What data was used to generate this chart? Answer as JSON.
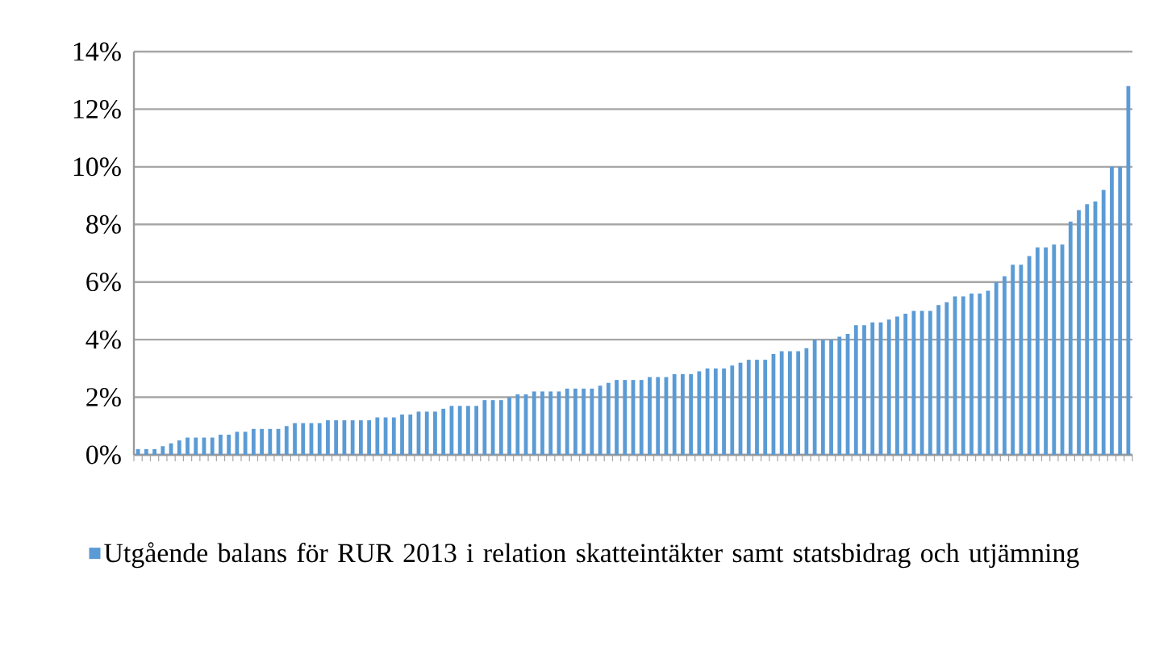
{
  "chart_data": {
    "type": "bar",
    "categories": [
      null,
      null,
      null,
      null,
      null,
      null,
      null,
      null,
      null,
      null,
      null,
      null,
      null,
      null,
      null,
      null,
      null,
      null,
      null,
      null,
      null,
      null,
      null,
      null,
      null,
      null,
      null,
      null,
      null,
      null,
      null,
      null,
      null,
      null,
      null,
      null,
      null,
      null,
      null,
      null,
      null,
      null,
      null,
      null,
      null,
      null,
      null,
      null,
      null,
      null,
      null,
      null,
      null,
      null,
      null,
      null,
      null,
      null,
      null,
      null,
      null,
      null,
      null,
      null,
      null,
      null,
      null,
      null,
      null,
      null,
      null,
      null,
      null,
      null,
      null,
      null,
      null,
      null,
      null,
      null,
      null,
      null,
      null,
      null,
      null,
      null,
      null,
      null,
      null,
      null,
      null,
      null,
      null,
      null,
      null,
      null,
      null,
      null,
      null,
      null,
      null,
      null,
      null,
      null,
      null,
      null,
      null,
      null,
      null,
      null,
      null,
      null,
      null,
      null,
      null,
      null,
      null,
      null,
      null,
      null,
      null
    ],
    "series": [
      {
        "name": "Utgående balans för RUR 2013 i relation skatteintäkter samt statsbidrag och utjämning",
        "color": "#5b9bd5",
        "values": [
          0.2,
          0.2,
          0.2,
          0.3,
          0.4,
          0.5,
          0.6,
          0.6,
          0.6,
          0.6,
          0.7,
          0.7,
          0.8,
          0.8,
          0.9,
          0.9,
          0.9,
          0.9,
          1.0,
          1.1,
          1.1,
          1.1,
          1.1,
          1.2,
          1.2,
          1.2,
          1.2,
          1.2,
          1.2,
          1.3,
          1.3,
          1.3,
          1.4,
          1.4,
          1.5,
          1.5,
          1.5,
          1.6,
          1.7,
          1.7,
          1.7,
          1.7,
          1.9,
          1.9,
          1.9,
          2.0,
          2.1,
          2.1,
          2.2,
          2.2,
          2.2,
          2.2,
          2.3,
          2.3,
          2.3,
          2.3,
          2.4,
          2.5,
          2.6,
          2.6,
          2.6,
          2.6,
          2.7,
          2.7,
          2.7,
          2.8,
          2.8,
          2.8,
          2.9,
          3.0,
          3.0,
          3.0,
          3.1,
          3.2,
          3.3,
          3.3,
          3.3,
          3.5,
          3.6,
          3.6,
          3.6,
          3.7,
          4.0,
          4.0,
          4.0,
          4.1,
          4.2,
          4.5,
          4.5,
          4.6,
          4.6,
          4.7,
          4.8,
          4.9,
          5.0,
          5.0,
          5.0,
          5.2,
          5.3,
          5.5,
          5.5,
          5.6,
          5.6,
          5.7,
          6.0,
          6.2,
          6.6,
          6.6,
          6.9,
          7.2,
          7.2,
          7.3,
          7.3,
          8.1,
          8.5,
          8.7,
          8.8,
          9.2,
          10.0,
          10.0,
          12.8
        ]
      }
    ],
    "ylim": [
      0,
      14
    ],
    "yticks": [
      {
        "value": 0,
        "label": "0%"
      },
      {
        "value": 2,
        "label": "2%"
      },
      {
        "value": 4,
        "label": "4%"
      },
      {
        "value": 6,
        "label": "6%"
      },
      {
        "value": 8,
        "label": "8%"
      },
      {
        "value": 10,
        "label": "10%"
      },
      {
        "value": 12,
        "label": "12%"
      },
      {
        "value": 14,
        "label": "14%"
      }
    ],
    "grid": "y",
    "legend": "bottom"
  }
}
